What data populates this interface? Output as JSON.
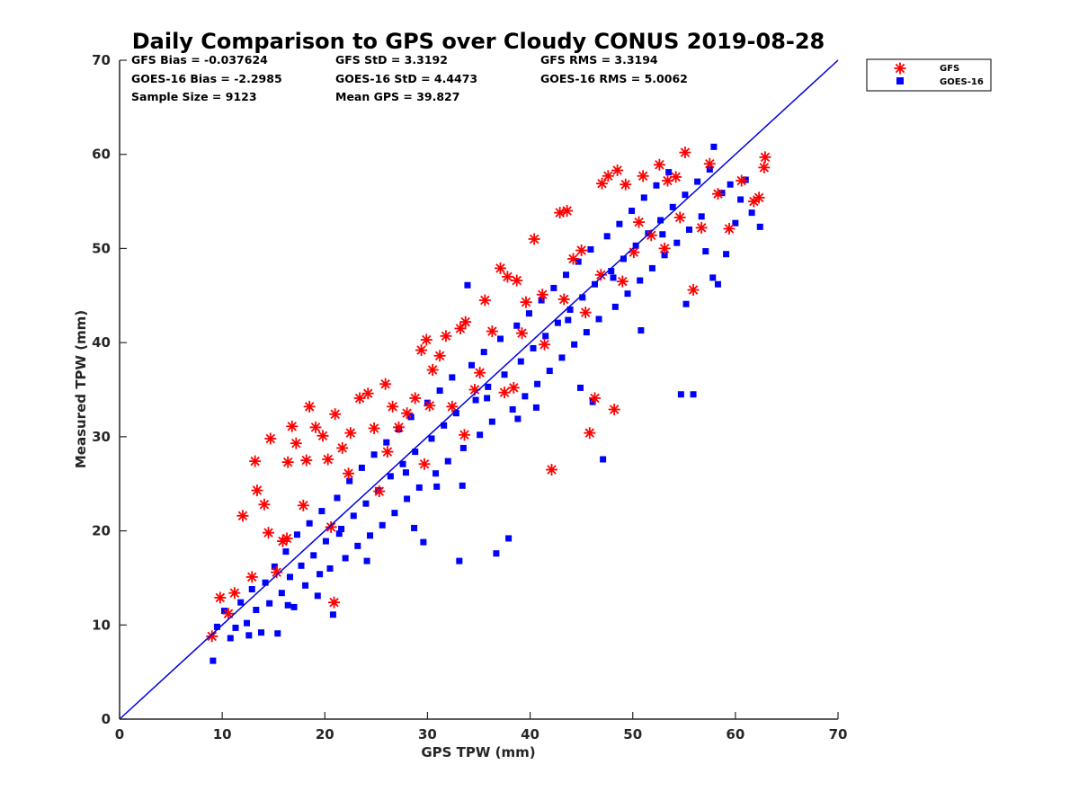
{
  "chart_data": {
    "type": "scatter",
    "title": "Daily Comparison to GPS over Cloudy CONUS 2019-08-28",
    "xlabel": "GPS TPW (mm)",
    "ylabel": "Measured TPW (mm)",
    "xlim": [
      0,
      70
    ],
    "ylim": [
      0,
      70
    ],
    "xticks": [
      0,
      10,
      20,
      30,
      40,
      50,
      60,
      70
    ],
    "yticks": [
      0,
      10,
      20,
      30,
      40,
      50,
      60,
      70
    ],
    "grid": false,
    "legend_position": "outside-top-right",
    "stats": [
      "GFS Bias = -0.037624",
      "GFS StD = 3.3192",
      "GFS RMS = 3.3194",
      "GOES-16 Bias = -2.2985",
      "GOES-16 StD = 4.4473",
      "GOES-16 RMS = 5.0062",
      "Sample Size = 9123",
      "Mean GPS = 39.827"
    ],
    "reference_line": {
      "x": [
        0,
        70
      ],
      "y": [
        0,
        70
      ],
      "color": "#0000dd"
    },
    "series": [
      {
        "name": "GOES-16",
        "marker": "square",
        "color": "#0000ff",
        "points": [
          [
            9.1,
            6.2
          ],
          [
            9.5,
            9.8
          ],
          [
            10.2,
            11.5
          ],
          [
            10.8,
            8.6
          ],
          [
            11.3,
            9.7
          ],
          [
            11.8,
            12.4
          ],
          [
            12.4,
            10.2
          ],
          [
            12.9,
            13.8
          ],
          [
            13.3,
            11.6
          ],
          [
            13.8,
            9.2
          ],
          [
            14.2,
            14.5
          ],
          [
            14.6,
            12.3
          ],
          [
            15.1,
            16.2
          ],
          [
            15.4,
            9.1
          ],
          [
            15.8,
            13.4
          ],
          [
            16.2,
            17.8
          ],
          [
            16.6,
            15.1
          ],
          [
            17.0,
            11.9
          ],
          [
            17.3,
            19.6
          ],
          [
            17.7,
            16.3
          ],
          [
            18.1,
            14.2
          ],
          [
            18.5,
            20.8
          ],
          [
            18.9,
            17.4
          ],
          [
            19.3,
            13.1
          ],
          [
            19.7,
            22.1
          ],
          [
            20.1,
            18.9
          ],
          [
            20.5,
            16.0
          ],
          [
            20.8,
            11.1
          ],
          [
            21.2,
            23.5
          ],
          [
            21.6,
            20.2
          ],
          [
            22.0,
            17.1
          ],
          [
            22.4,
            25.3
          ],
          [
            22.8,
            21.6
          ],
          [
            23.2,
            18.4
          ],
          [
            23.6,
            26.7
          ],
          [
            24.0,
            22.9
          ],
          [
            24.4,
            19.5
          ],
          [
            24.8,
            28.1
          ],
          [
            25.2,
            24.3
          ],
          [
            25.6,
            20.6
          ],
          [
            26.0,
            29.4
          ],
          [
            26.4,
            25.8
          ],
          [
            26.8,
            21.9
          ],
          [
            27.2,
            30.8
          ],
          [
            27.6,
            27.1
          ],
          [
            28.0,
            23.4
          ],
          [
            28.4,
            32.1
          ],
          [
            28.8,
            28.4
          ],
          [
            29.2,
            24.6
          ],
          [
            29.6,
            18.8
          ],
          [
            30.0,
            33.6
          ],
          [
            30.4,
            29.8
          ],
          [
            30.8,
            26.1
          ],
          [
            31.2,
            34.9
          ],
          [
            31.6,
            31.2
          ],
          [
            32.0,
            27.4
          ],
          [
            32.4,
            36.3
          ],
          [
            32.8,
            32.5
          ],
          [
            33.1,
            16.8
          ],
          [
            33.5,
            28.8
          ],
          [
            33.9,
            46.1
          ],
          [
            34.3,
            37.6
          ],
          [
            34.7,
            33.9
          ],
          [
            35.1,
            30.2
          ],
          [
            35.5,
            39.0
          ],
          [
            35.9,
            35.3
          ],
          [
            36.3,
            31.6
          ],
          [
            36.7,
            17.6
          ],
          [
            37.1,
            40.4
          ],
          [
            37.5,
            36.6
          ],
          [
            37.9,
            19.2
          ],
          [
            38.3,
            32.9
          ],
          [
            38.7,
            41.8
          ],
          [
            39.1,
            38.0
          ],
          [
            39.5,
            34.3
          ],
          [
            39.9,
            43.1
          ],
          [
            40.3,
            39.4
          ],
          [
            40.7,
            35.6
          ],
          [
            41.1,
            44.5
          ],
          [
            41.5,
            40.7
          ],
          [
            41.9,
            37.0
          ],
          [
            42.3,
            45.8
          ],
          [
            42.7,
            42.1
          ],
          [
            43.1,
            38.4
          ],
          [
            43.5,
            47.2
          ],
          [
            43.9,
            43.5
          ],
          [
            44.3,
            39.8
          ],
          [
            44.7,
            48.6
          ],
          [
            45.1,
            44.8
          ],
          [
            45.5,
            41.1
          ],
          [
            45.9,
            49.9
          ],
          [
            46.3,
            46.2
          ],
          [
            46.7,
            42.5
          ],
          [
            47.1,
            27.6
          ],
          [
            47.5,
            51.3
          ],
          [
            47.9,
            47.6
          ],
          [
            48.3,
            43.8
          ],
          [
            48.7,
            52.6
          ],
          [
            49.1,
            48.9
          ],
          [
            49.5,
            45.2
          ],
          [
            49.9,
            54.0
          ],
          [
            50.3,
            50.3
          ],
          [
            50.7,
            46.6
          ],
          [
            51.1,
            55.4
          ],
          [
            51.5,
            51.6
          ],
          [
            51.9,
            47.9
          ],
          [
            52.3,
            56.7
          ],
          [
            52.7,
            53.0
          ],
          [
            53.1,
            49.3
          ],
          [
            53.5,
            58.1
          ],
          [
            53.9,
            54.4
          ],
          [
            54.3,
            50.6
          ],
          [
            54.7,
            34.5
          ],
          [
            55.1,
            55.7
          ],
          [
            55.5,
            52.0
          ],
          [
            55.9,
            34.5
          ],
          [
            56.3,
            57.1
          ],
          [
            56.7,
            53.4
          ],
          [
            57.1,
            49.7
          ],
          [
            57.5,
            58.4
          ],
          [
            57.9,
            60.8
          ],
          [
            58.3,
            46.2
          ],
          [
            58.7,
            55.9
          ],
          [
            59.1,
            49.4
          ],
          [
            59.5,
            56.8
          ],
          [
            60.0,
            52.7
          ],
          [
            60.5,
            55.2
          ],
          [
            61.0,
            57.3
          ],
          [
            61.6,
            53.8
          ],
          [
            62.4,
            52.3
          ],
          [
            21.4,
            19.7
          ],
          [
            27.9,
            26.2
          ],
          [
            35.8,
            34.1
          ],
          [
            43.7,
            42.4
          ],
          [
            48.1,
            46.9
          ],
          [
            52.9,
            51.5
          ],
          [
            30.9,
            24.7
          ],
          [
            38.8,
            31.9
          ],
          [
            44.9,
            35.2
          ],
          [
            46.1,
            33.7
          ],
          [
            24.1,
            16.8
          ],
          [
            19.5,
            15.4
          ],
          [
            16.4,
            12.1
          ],
          [
            12.6,
            8.9
          ],
          [
            28.7,
            20.3
          ],
          [
            33.4,
            24.8
          ],
          [
            40.6,
            33.1
          ],
          [
            50.8,
            41.3
          ],
          [
            55.2,
            44.1
          ],
          [
            57.8,
            46.9
          ]
        ]
      },
      {
        "name": "GFS",
        "marker": "asterisk",
        "color": "#ff0000",
        "points": [
          [
            9.0,
            8.8
          ],
          [
            9.8,
            12.9
          ],
          [
            10.6,
            11.2
          ],
          [
            11.2,
            13.4
          ],
          [
            12.0,
            21.6
          ],
          [
            12.9,
            15.1
          ],
          [
            13.2,
            27.4
          ],
          [
            13.4,
            24.3
          ],
          [
            14.1,
            22.8
          ],
          [
            14.5,
            19.8
          ],
          [
            14.7,
            29.8
          ],
          [
            15.3,
            15.6
          ],
          [
            15.9,
            18.9
          ],
          [
            16.4,
            27.3
          ],
          [
            16.8,
            31.1
          ],
          [
            17.2,
            29.3
          ],
          [
            17.9,
            22.7
          ],
          [
            18.5,
            33.2
          ],
          [
            19.1,
            31.0
          ],
          [
            19.8,
            30.1
          ],
          [
            20.3,
            27.6
          ],
          [
            20.9,
            12.4
          ],
          [
            21.0,
            32.4
          ],
          [
            21.7,
            28.8
          ],
          [
            22.5,
            30.4
          ],
          [
            23.4,
            34.1
          ],
          [
            24.2,
            34.6
          ],
          [
            24.8,
            30.9
          ],
          [
            25.9,
            35.6
          ],
          [
            26.6,
            33.2
          ],
          [
            27.2,
            31.0
          ],
          [
            28.0,
            32.5
          ],
          [
            28.8,
            34.1
          ],
          [
            29.4,
            39.2
          ],
          [
            29.9,
            40.3
          ],
          [
            30.5,
            37.1
          ],
          [
            31.2,
            38.6
          ],
          [
            31.8,
            40.7
          ],
          [
            32.4,
            33.2
          ],
          [
            33.2,
            41.5
          ],
          [
            33.7,
            42.2
          ],
          [
            34.6,
            35.0
          ],
          [
            35.6,
            44.5
          ],
          [
            36.3,
            41.2
          ],
          [
            37.1,
            47.9
          ],
          [
            37.8,
            47.0
          ],
          [
            38.4,
            35.2
          ],
          [
            38.7,
            46.6
          ],
          [
            39.6,
            44.3
          ],
          [
            40.4,
            51.0
          ],
          [
            41.2,
            45.1
          ],
          [
            42.1,
            26.5
          ],
          [
            42.9,
            53.8
          ],
          [
            43.6,
            54.0
          ],
          [
            44.2,
            48.9
          ],
          [
            45.0,
            49.8
          ],
          [
            45.8,
            30.4
          ],
          [
            46.3,
            34.1
          ],
          [
            47.0,
            56.9
          ],
          [
            47.6,
            57.7
          ],
          [
            48.2,
            32.9
          ],
          [
            48.5,
            58.3
          ],
          [
            49.3,
            56.8
          ],
          [
            50.1,
            49.6
          ],
          [
            51.0,
            57.7
          ],
          [
            51.8,
            51.4
          ],
          [
            52.6,
            58.9
          ],
          [
            53.4,
            57.2
          ],
          [
            54.2,
            57.6
          ],
          [
            55.1,
            60.2
          ],
          [
            55.9,
            45.6
          ],
          [
            56.7,
            52.2
          ],
          [
            57.5,
            59.0
          ],
          [
            58.3,
            55.8
          ],
          [
            59.4,
            52.1
          ],
          [
            60.6,
            57.2
          ],
          [
            61.8,
            55.0
          ],
          [
            62.3,
            55.4
          ],
          [
            62.8,
            58.6
          ],
          [
            62.9,
            59.7
          ],
          [
            18.2,
            27.5
          ],
          [
            22.3,
            26.1
          ],
          [
            26.1,
            28.4
          ],
          [
            30.2,
            33.3
          ],
          [
            35.1,
            36.8
          ],
          [
            39.2,
            41.0
          ],
          [
            43.3,
            44.6
          ],
          [
            46.9,
            47.2
          ],
          [
            50.6,
            52.8
          ],
          [
            54.6,
            53.3
          ],
          [
            16.3,
            19.2
          ],
          [
            20.6,
            20.4
          ],
          [
            25.3,
            24.2
          ],
          [
            29.7,
            27.1
          ],
          [
            33.6,
            30.2
          ],
          [
            37.5,
            34.7
          ],
          [
            41.4,
            39.8
          ],
          [
            45.4,
            43.2
          ],
          [
            49.0,
            46.5
          ],
          [
            53.1,
            50.0
          ]
        ]
      }
    ]
  }
}
